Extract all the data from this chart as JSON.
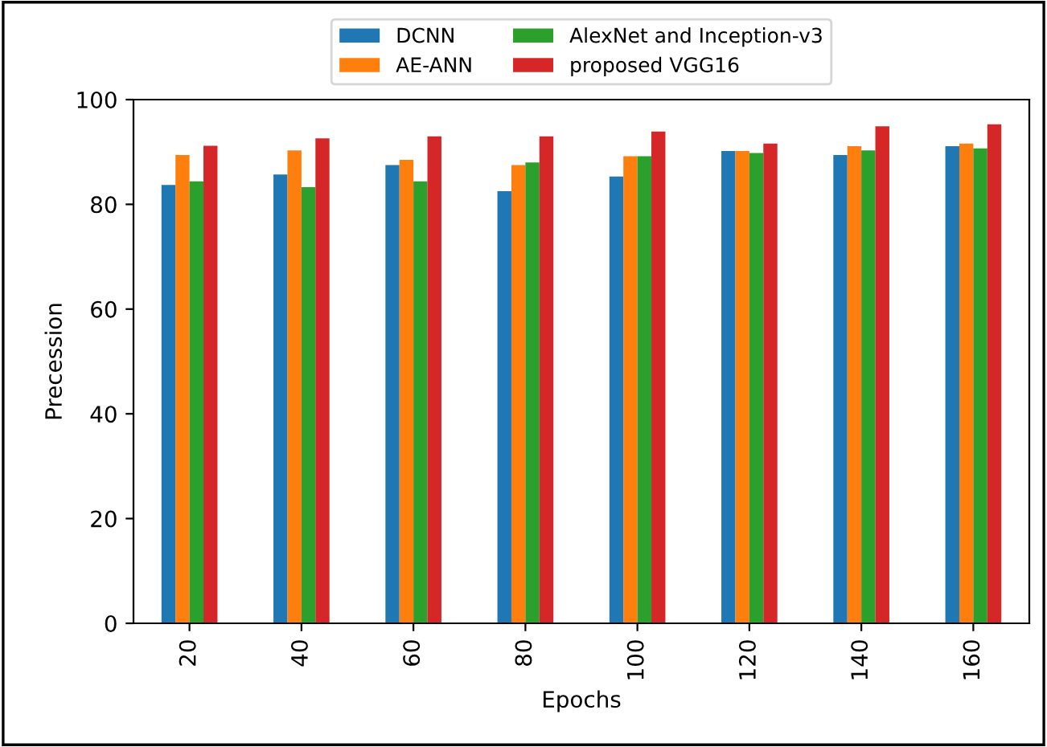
{
  "chart_data": {
    "type": "bar",
    "xlabel": "Epochs",
    "ylabel": "Precession",
    "categories": [
      "20",
      "40",
      "60",
      "80",
      "100",
      "120",
      "140",
      "160"
    ],
    "series": [
      {
        "name": "DCNN",
        "color": "#1f77b4",
        "values": [
          83.7,
          85.7,
          87.5,
          82.5,
          85.3,
          90.2,
          89.4,
          91.1
        ]
      },
      {
        "name": "AE-ANN",
        "color": "#ff7f0e",
        "values": [
          89.4,
          90.3,
          88.5,
          87.5,
          89.2,
          90.2,
          91.1,
          91.6
        ]
      },
      {
        "name": "AlexNet and Inception-v3",
        "color": "#2ca02c",
        "values": [
          84.4,
          83.3,
          84.4,
          88.0,
          89.2,
          89.8,
          90.3,
          90.7
        ]
      },
      {
        "name": "proposed VGG16",
        "color": "#d62728",
        "values": [
          91.2,
          92.6,
          93.0,
          93.0,
          93.9,
          91.6,
          94.9,
          95.3
        ]
      }
    ],
    "ylim": [
      0,
      100
    ],
    "yticks": [
      0,
      20,
      40,
      60,
      80,
      100
    ],
    "legend": "top"
  }
}
